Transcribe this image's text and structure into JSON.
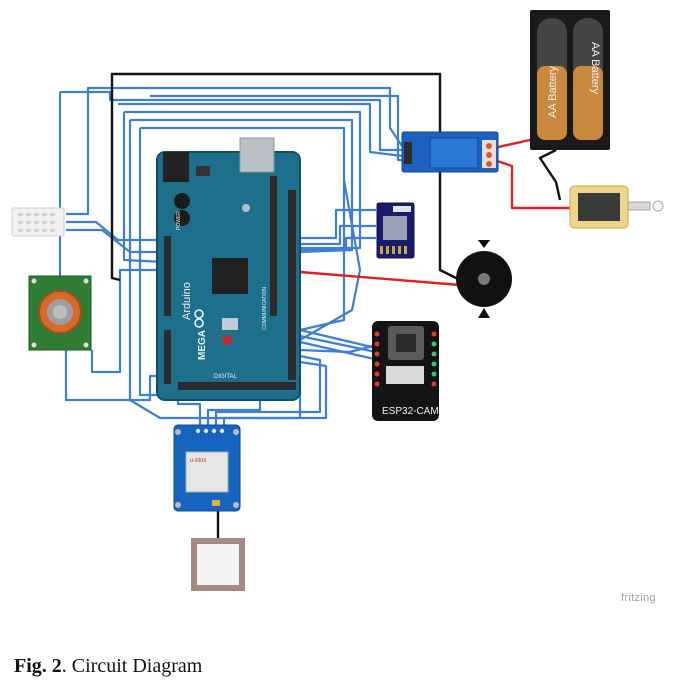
{
  "components": {
    "battery_label_1": "AA Battery",
    "battery_label_2": "AA Battery",
    "board_brand": "Arduino",
    "board_model": "MEGA",
    "board_digital": "DIGITAL",
    "board_power": "POWER",
    "board_communication": "COMMUNICATION",
    "camera_label": "ESP32-CAM",
    "gps_brand": "u-blox"
  },
  "watermark": "fritzing",
  "caption": {
    "prefix": "Fig. 2",
    "text": ". Circuit Diagram"
  },
  "colors": {
    "wire_signal": "#3f7fd1",
    "wire_power": "#e01f1f",
    "wire_ground": "#111111",
    "arduino_board": "#1e6f8c",
    "sensor_module": "#2e7d32",
    "sensor_cap": "#d96a2b"
  }
}
